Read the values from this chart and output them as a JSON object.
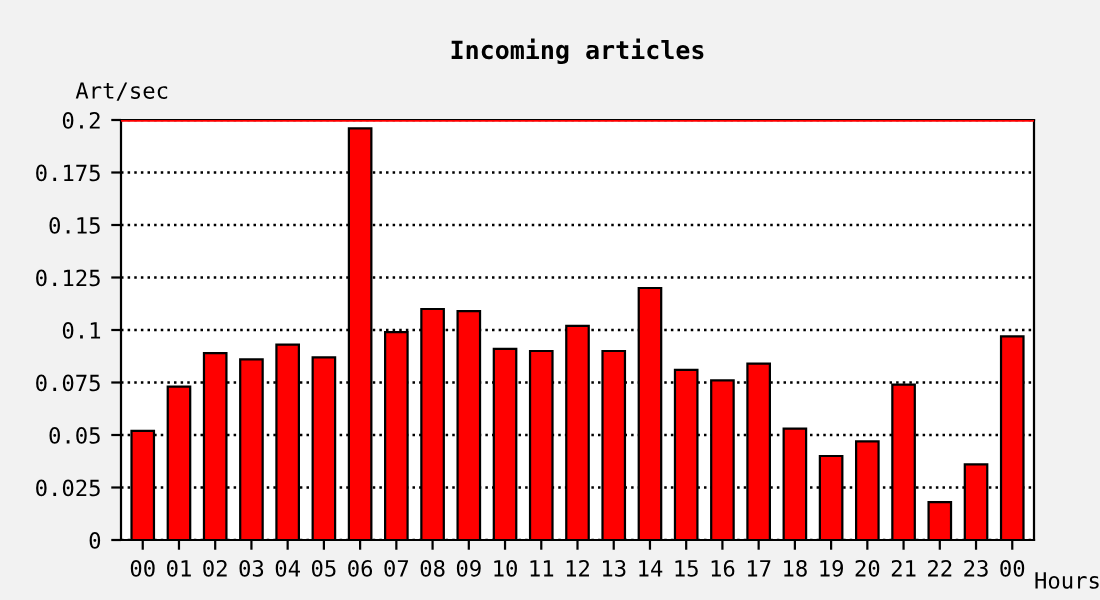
{
  "chart_data": {
    "type": "bar",
    "title": "Incoming articles",
    "xlabel": "Hours",
    "ylabel": "Art/sec",
    "categories": [
      "00",
      "01",
      "02",
      "03",
      "04",
      "05",
      "06",
      "07",
      "08",
      "09",
      "10",
      "11",
      "12",
      "13",
      "14",
      "15",
      "16",
      "17",
      "18",
      "19",
      "20",
      "21",
      "22",
      "23",
      "00"
    ],
    "values": [
      0.052,
      0.073,
      0.089,
      0.086,
      0.093,
      0.087,
      0.196,
      0.099,
      0.11,
      0.109,
      0.091,
      0.09,
      0.102,
      0.09,
      0.12,
      0.081,
      0.076,
      0.084,
      0.053,
      0.04,
      0.047,
      0.074,
      0.018,
      0.036,
      0.097
    ],
    "color": "#ff0000",
    "ylim": [
      0,
      0.2
    ],
    "yticks": [
      0,
      0.025,
      0.05,
      0.075,
      0.1,
      0.125,
      0.15,
      0.175,
      0.2
    ],
    "grid": "y",
    "line_style": "dotted",
    "ref_lines": [
      {
        "axis": "y",
        "value": 0.2,
        "color": "#ff0000"
      }
    ]
  }
}
